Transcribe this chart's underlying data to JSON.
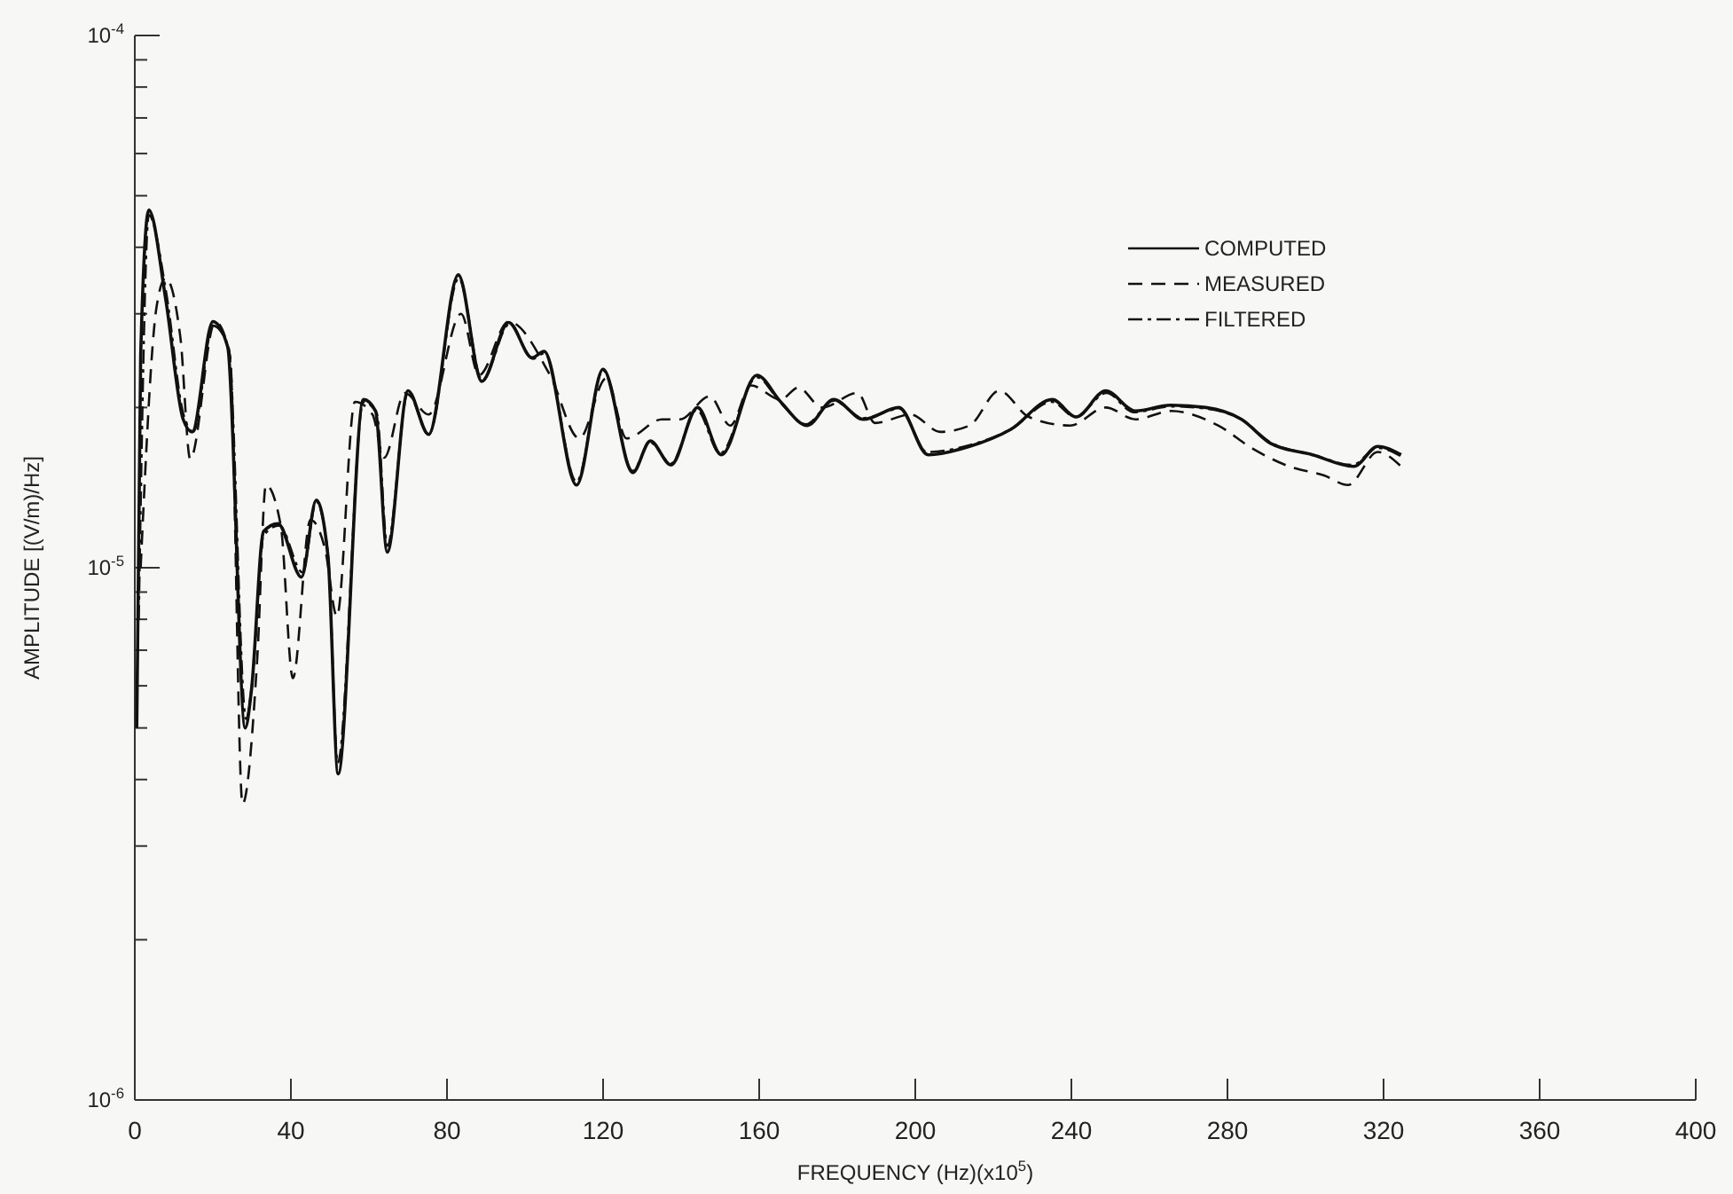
{
  "chart_data": {
    "type": "line",
    "xlabel": "FREQUENCY (Hz)(x10$^{5}$)",
    "ylabel": "AMPLITUDE [(V/m)/Hz]",
    "log": "y",
    "xlim": [
      0,
      400
    ],
    "xticks": [
      0,
      40,
      80,
      120,
      160,
      200,
      240,
      280,
      320,
      360,
      400
    ],
    "ylim": [
      1e-06,
      0.0001
    ],
    "yticks": [
      {
        "value": 1e-06,
        "label": "10$^{-6}$"
      },
      {
        "value": 2e-06,
        "label": null
      },
      {
        "value": 3e-06,
        "label": null
      },
      {
        "value": 4e-06,
        "label": null
      },
      {
        "value": 5e-06,
        "label": null
      },
      {
        "value": 6e-06,
        "label": null
      },
      {
        "value": 7e-06,
        "label": null
      },
      {
        "value": 8e-06,
        "label": null
      },
      {
        "value": 9e-06,
        "label": null
      },
      {
        "value": 1e-05,
        "label": "10$^{-5}$"
      },
      {
        "value": 2e-05,
        "label": null
      },
      {
        "value": 3e-05,
        "label": null
      },
      {
        "value": 4e-05,
        "label": null
      },
      {
        "value": 5e-05,
        "label": null
      },
      {
        "value": 6e-05,
        "label": null
      },
      {
        "value": 7e-05,
        "label": null
      },
      {
        "value": 8e-05,
        "label": null
      },
      {
        "value": 9e-05,
        "label": null
      },
      {
        "value": 0.0001,
        "label": "10$^{-4}$"
      }
    ],
    "grid": false,
    "legend": "top right",
    "series": [
      {
        "name": "COMPUTED",
        "color": "#111111",
        "line_style": "solid",
        "x": [
          0.5,
          1.5,
          3.6,
          7.9,
          12.4,
          14.7,
          20,
          23.8,
          28.3,
          29.9,
          33,
          36.7,
          42.7,
          46.5,
          49.5,
          52.1,
          58.6,
          61.7,
          64.7,
          70,
          75.3,
          82.9,
          88.9,
          95.8,
          101.8,
          104.9,
          113.2,
          120,
          127.6,
          132.1,
          137.4,
          144.2,
          150.3,
          159.4,
          165.5,
          172.3,
          179.1,
          186.7,
          195.8,
          203.3,
          213.9,
          224.5,
          235.1,
          241.2,
          248.8,
          256.4,
          265.5,
          274.5,
          283.6,
          291.2,
          301.8,
          312.4,
          318.5,
          324.5
        ],
        "values": [
          5e-06,
          2.5e-05,
          4.7e-05,
          3.2e-05,
          1.9e-05,
          1.8e-05,
          2.9e-05,
          2.6e-05,
          5e-06,
          5.9e-06,
          1.17e-05,
          1.21e-05,
          9.6e-06,
          1.34e-05,
          1.05e-05,
          4.1e-06,
          2.07e-05,
          1.97e-05,
          1.07e-05,
          2.15e-05,
          1.78e-05,
          3.55e-05,
          2.24e-05,
          2.89e-05,
          2.48e-05,
          2.55e-05,
          1.43e-05,
          2.36e-05,
          1.51e-05,
          1.73e-05,
          1.56e-05,
          2e-05,
          1.63e-05,
          2.3e-05,
          2.05e-05,
          1.85e-05,
          2.07e-05,
          1.9e-05,
          2e-05,
          1.63e-05,
          1.69e-05,
          1.82e-05,
          2.07e-05,
          1.92e-05,
          2.15e-05,
          1.97e-05,
          2.02e-05,
          2e-05,
          1.9e-05,
          1.71e-05,
          1.63e-05,
          1.55e-05,
          1.69e-05,
          1.63e-05
        ]
      },
      {
        "name": "MEASURED",
        "color": "#111111",
        "line_style": "dashed",
        "x": [
          1.5,
          5.6,
          7.9,
          11.7,
          14.2,
          20.6,
          24.4,
          27.6,
          31.4,
          33.6,
          37.4,
          40.5,
          45,
          48.8,
          51.8,
          56.4,
          60.9,
          63.9,
          69.2,
          75.3,
          83.6,
          88.2,
          95.8,
          106.4,
          113.9,
          120.8,
          126,
          135.1,
          139.7,
          147.3,
          152.6,
          157.9,
          165.5,
          170,
          176.1,
          185.2,
          189.7,
          198.8,
          206.4,
          213.9,
          221.5,
          229.1,
          239.7,
          248.8,
          256.4,
          265.5,
          277.6,
          286.7,
          295.8,
          304.8,
          310.9,
          318.5,
          324.5
        ],
        "values": [
          1e-05,
          3.1e-05,
          3.5e-05,
          2.7e-05,
          1.6e-05,
          2.9e-05,
          2.5e-05,
          3.6e-06,
          6.8e-06,
          1.43e-05,
          1.2e-05,
          6.2e-06,
          1.23e-05,
          1.08e-05,
          8.1e-06,
          2.05e-05,
          1.94e-05,
          1.61e-05,
          2.13e-05,
          1.94e-05,
          3e-05,
          2.3e-05,
          2.9e-05,
          2.3e-05,
          1.75e-05,
          2.27e-05,
          1.75e-05,
          1.9e-05,
          1.9e-05,
          2.1e-05,
          1.85e-05,
          2.2e-05,
          2.07e-05,
          2.18e-05,
          2e-05,
          2.13e-05,
          1.87e-05,
          1.94e-05,
          1.8e-05,
          1.85e-05,
          2.15e-05,
          1.92e-05,
          1.85e-05,
          2e-05,
          1.9e-05,
          1.97e-05,
          1.85e-05,
          1.67e-05,
          1.55e-05,
          1.49e-05,
          1.43e-05,
          1.65e-05,
          1.55e-05
        ]
      },
      {
        "name": "FILTERED",
        "color": "#111111",
        "line_style": "dashdot",
        "x": [
          1,
          3.6,
          8,
          12.4,
          15,
          20,
          24,
          28.5,
          30,
          33,
          37,
          43,
          46.5,
          49.5,
          52,
          58.6,
          62,
          64.7,
          70,
          75.3,
          83,
          89,
          96,
          102,
          105,
          113.2,
          120,
          127.6,
          132,
          137.4,
          144,
          150,
          159.4,
          165.5,
          172,
          179,
          186.7,
          196,
          203,
          214,
          224.5,
          235,
          241,
          249,
          256,
          265.5,
          274.5,
          283.6,
          291,
          302,
          312,
          318.5,
          324.5
        ],
        "values": [
          8e-06,
          4.6e-05,
          3.3e-05,
          1.95e-05,
          1.8e-05,
          2.85e-05,
          2.6e-05,
          5.2e-06,
          6e-06,
          1.15e-05,
          1.2e-05,
          9.8e-06,
          1.33e-05,
          1.06e-05,
          4.3e-06,
          2.05e-05,
          1.95e-05,
          1.1e-05,
          2.13e-05,
          1.78e-05,
          3.5e-05,
          2.25e-05,
          2.87e-05,
          2.47e-05,
          2.53e-05,
          1.45e-05,
          2.35e-05,
          1.52e-05,
          1.72e-05,
          1.57e-05,
          1.98e-05,
          1.64e-05,
          2.28e-05,
          2.04e-05,
          1.86e-05,
          2.06e-05,
          1.91e-05,
          1.99e-05,
          1.65e-05,
          1.7e-05,
          1.82e-05,
          2.05e-05,
          1.92e-05,
          2.13e-05,
          1.96e-05,
          2.01e-05,
          1.99e-05,
          1.9e-05,
          1.72e-05,
          1.63e-05,
          1.56e-05,
          1.68e-05,
          1.62e-05
        ]
      }
    ]
  }
}
